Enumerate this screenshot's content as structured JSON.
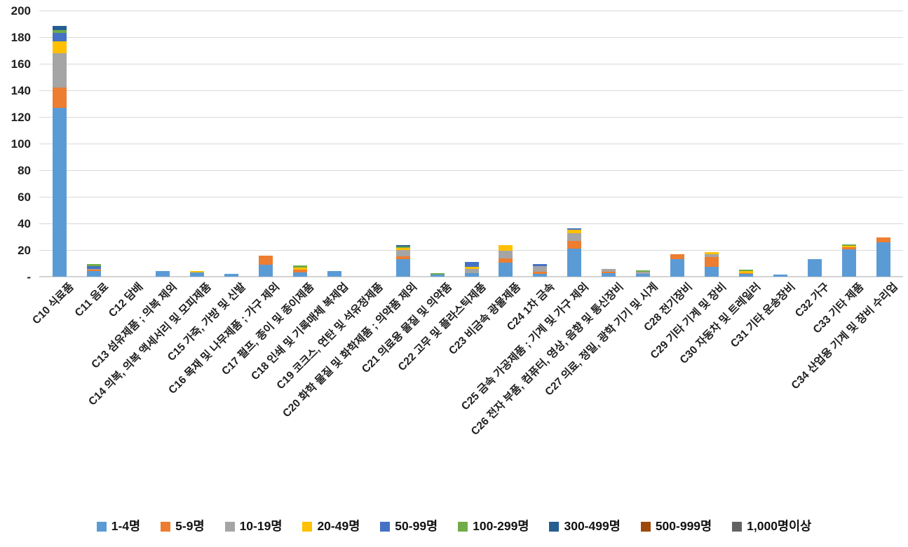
{
  "chart_data": {
    "type": "bar",
    "stacked": true,
    "title": "",
    "xlabel": "",
    "ylabel": "",
    "grid": true,
    "legend_position": "bottom",
    "categories": [
      "C10 식료품",
      "C11 음료",
      "C12 담배",
      "C13 섬유제품 ; 의복 제외",
      "C14 의복, 의복 액세서리 및 모피제품",
      "C15 가죽, 가방 및 신발",
      "C16 목재 및 나무제품 ; 가구 제외",
      "C17 펄프, 종이 및 종이제품",
      "C18 인쇄 및 기록매체 복제업",
      "C19 코크스, 연탄 및 석유정제품",
      "C20 화학 물질 및 화학제품 ; 의약품 제외",
      "C21 의료용 물질 및 의약품",
      "C22 고무 및 플라스틱제품",
      "C23 비금속 광물제품",
      "C24 1차 금속",
      "C25 금속 가공제품 ; 기계 및 가구 제외",
      "C26 전자 부품, 컴퓨터, 영상, 음향 및 통신장비",
      "C27 의료, 정밀, 광학 기기 및 시계",
      "C28 전기장비",
      "C29 기타 기계 및 장비",
      "C30 자동차 및 트레일러",
      "C31 기타 운송장비",
      "C32 가구",
      "C33 기타 제품",
      "C34 산업용 기계 및 장비 수리업"
    ],
    "series": [
      {
        "name": "1-4명",
        "color": "#5B9BD5",
        "values": [
          127,
          4,
          0,
          4,
          3,
          2,
          9,
          3,
          4,
          0,
          13,
          1.5,
          2.5,
          10.5,
          2,
          21,
          2.5,
          2,
          13,
          7.5,
          2,
          1.5,
          13,
          20.5,
          26
        ]
      },
      {
        "name": "5-9명",
        "color": "#ED7D31",
        "values": [
          15,
          1.5,
          0,
          0,
          0,
          0,
          7,
          2,
          0,
          0,
          2.5,
          0,
          0,
          3,
          1.5,
          6,
          1,
          0,
          4,
          7,
          0.5,
          0,
          0,
          1.5,
          3.5
        ]
      },
      {
        "name": "10-19명",
        "color": "#A5A5A5",
        "values": [
          26,
          0.5,
          0,
          0,
          0,
          0,
          0,
          0,
          0,
          0,
          4.5,
          0,
          3.5,
          6,
          4.5,
          5.5,
          2.5,
          1.5,
          0,
          2.5,
          0,
          0,
          0,
          0,
          0
        ]
      },
      {
        "name": "20-49명",
        "color": "#FFC000",
        "values": [
          9,
          0,
          0,
          0,
          1,
          0,
          0,
          2,
          0,
          0,
          1.5,
          0,
          1.5,
          4,
          0,
          2.5,
          0,
          0,
          0,
          1.5,
          1.5,
          0,
          0,
          1,
          0
        ]
      },
      {
        "name": "50-99명",
        "color": "#4472C4",
        "values": [
          6,
          2,
          0,
          0,
          0,
          0,
          0,
          0,
          0,
          0,
          0,
          0,
          3.5,
          0,
          1.5,
          1.5,
          0,
          0,
          0,
          0,
          0,
          0,
          0,
          0,
          0
        ]
      },
      {
        "name": "100-299명",
        "color": "#70AD47",
        "values": [
          2.5,
          1.5,
          0,
          0,
          0,
          0,
          0,
          1.5,
          0,
          0,
          1,
          1,
          0,
          0,
          0,
          0,
          0,
          1.5,
          0,
          0,
          1.5,
          0,
          0,
          1,
          0
        ]
      },
      {
        "name": "300-499명",
        "color": "#255E91",
        "values": [
          3,
          0,
          0,
          0,
          0,
          0,
          0,
          0,
          0,
          0,
          1,
          0,
          0,
          0,
          0,
          0,
          0,
          0,
          0,
          0,
          0,
          0,
          0,
          0,
          0
        ]
      },
      {
        "name": "500-999명",
        "color": "#9E480E",
        "values": [
          0,
          0,
          0,
          0,
          0,
          0,
          0,
          0,
          0,
          0,
          0,
          0,
          0,
          0,
          0,
          0,
          0,
          0,
          0,
          0,
          0,
          0,
          0,
          0,
          0
        ]
      },
      {
        "name": "1,000명이상",
        "color": "#636363",
        "values": [
          0,
          0,
          0,
          0,
          0,
          0,
          0,
          0,
          0,
          0,
          0,
          0,
          0,
          0,
          0,
          0,
          0,
          0,
          0,
          0,
          0,
          0,
          0,
          0,
          0
        ]
      }
    ],
    "y_axis": {
      "min": 0,
      "max": 200,
      "step": 20,
      "zero_label": "-",
      "tick_labels": [
        "200",
        "180",
        "160",
        "140",
        "120",
        "100",
        "80",
        "60",
        "40",
        "20",
        "-"
      ]
    }
  }
}
